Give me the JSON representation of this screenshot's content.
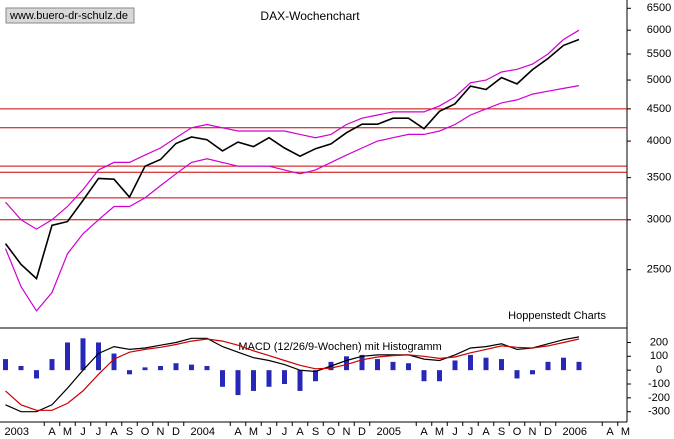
{
  "chart_data": [
    {
      "type": "line",
      "title": "DAX-Wochenchart",
      "source": "www.buero-dr-schulz.de",
      "annotation": "Hoppenstedt Charts",
      "log_scale": true,
      "categories": [
        "2003",
        null,
        null,
        "A",
        "M",
        "J",
        "J",
        "A",
        "S",
        "O",
        "N",
        "D",
        "2004",
        null,
        null,
        "A",
        "M",
        "J",
        "J",
        "A",
        "S",
        "O",
        "N",
        "D",
        "2005",
        null,
        null,
        "A",
        "M",
        "J",
        "J",
        "A",
        "S",
        "O",
        "N",
        "D",
        "2006",
        null,
        null,
        "A",
        "M"
      ],
      "series": [
        {
          "color": "#000000",
          "values": [
            2750,
            2550,
            2420,
            2940,
            2980,
            3220,
            3490,
            3480,
            3260,
            3650,
            3740,
            3965,
            4060,
            4020,
            3860,
            3985,
            3920,
            4050,
            3900,
            3785,
            3890,
            3960,
            4125,
            4255,
            4255,
            4350,
            4350,
            4185,
            4460,
            4585,
            4890,
            4830,
            5045,
            4930,
            5195,
            5410,
            5675,
            5800,
            null,
            null,
            null
          ]
        },
        {
          "color": "#d000d0",
          "values": [
            3200,
            3000,
            2900,
            3000,
            3150,
            3350,
            3600,
            3700,
            3700,
            3800,
            3900,
            4050,
            4200,
            4250,
            4200,
            4150,
            4150,
            4150,
            4150,
            4100,
            4050,
            4100,
            4250,
            4350,
            4400,
            4450,
            4450,
            4450,
            4550,
            4700,
            4950,
            5000,
            5150,
            5200,
            5300,
            5500,
            5800,
            6000,
            null,
            null,
            null
          ]
        },
        {
          "color": "#d000d0",
          "values": [
            2700,
            2350,
            2150,
            2300,
            2650,
            2850,
            3000,
            3150,
            3150,
            3250,
            3400,
            3550,
            3700,
            3750,
            3700,
            3650,
            3650,
            3650,
            3600,
            3550,
            3600,
            3700,
            3800,
            3900,
            4000,
            4050,
            4100,
            4100,
            4150,
            4250,
            4400,
            4500,
            4600,
            4650,
            4750,
            4800,
            4850,
            4900,
            null,
            null,
            null
          ]
        }
      ],
      "reference_lines": [
        4500,
        4200,
        3650,
        3570,
        3250,
        3000
      ],
      "reference_line_color": "#cc0000",
      "ylim": [
        2020,
        6700
      ],
      "yticks": [
        2500,
        3000,
        3500,
        4000,
        4500,
        5000,
        5500,
        6000,
        6500
      ]
    },
    {
      "type": "line",
      "title": "MACD (12/26/9-Wochen) mit Histogramm",
      "series": [
        {
          "type": "bar",
          "color": "#2828b8",
          "values": [
            80,
            30,
            -60,
            80,
            200,
            230,
            200,
            120,
            -30,
            20,
            30,
            50,
            40,
            30,
            -120,
            -180,
            -150,
            -120,
            -100,
            -150,
            -80,
            60,
            100,
            110,
            80,
            60,
            50,
            -80,
            -80,
            70,
            110,
            90,
            80,
            -60,
            -30,
            60,
            90,
            60,
            null,
            null,
            null
          ]
        },
        {
          "color": "#000000",
          "values": [
            -250,
            -300,
            -300,
            -250,
            -130,
            0,
            120,
            170,
            150,
            160,
            180,
            200,
            230,
            230,
            170,
            130,
            90,
            70,
            40,
            0,
            -10,
            30,
            70,
            100,
            110,
            110,
            110,
            80,
            70,
            110,
            160,
            170,
            190,
            150,
            160,
            190,
            220,
            240,
            null,
            null,
            null
          ]
        },
        {
          "color": "#cc0000",
          "values": [
            -150,
            -250,
            -290,
            -290,
            -240,
            -150,
            -30,
            80,
            130,
            150,
            165,
            185,
            210,
            225,
            210,
            180,
            140,
            105,
            70,
            35,
            10,
            15,
            40,
            75,
            95,
            105,
            110,
            100,
            85,
            95,
            125,
            150,
            175,
            165,
            160,
            175,
            200,
            225,
            null,
            null,
            null
          ]
        }
      ],
      "ylim": [
        -360,
        290
      ],
      "yticks": [
        200,
        100,
        0,
        -100,
        -200,
        -300
      ]
    }
  ]
}
